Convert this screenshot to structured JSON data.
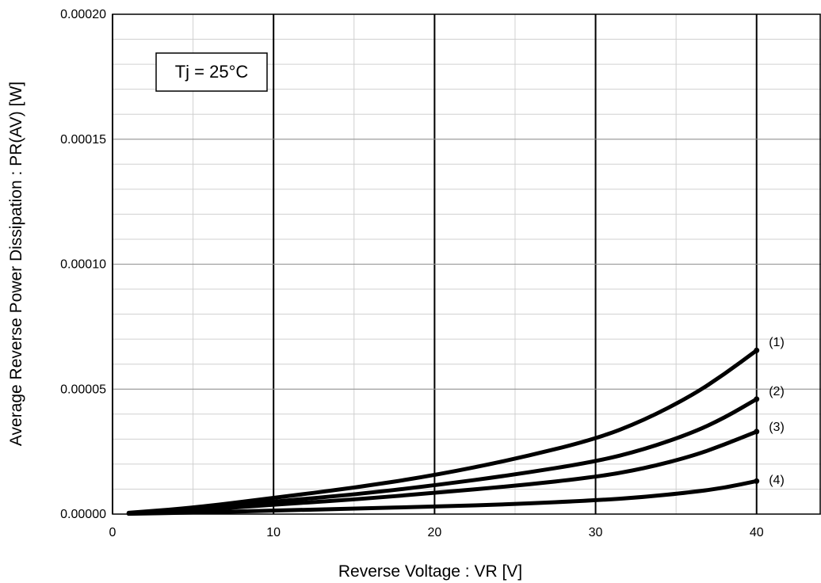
{
  "chart_data": {
    "type": "line",
    "title": "",
    "xlabel": "Reverse Voltage : VR [V]",
    "ylabel": "Average Reverse Power Dissipation : PR(AV) [W]",
    "xlim": [
      0,
      44
    ],
    "ylim": [
      0,
      0.0002
    ],
    "x_ticks": [
      "0",
      "10",
      "20",
      "30",
      "40"
    ],
    "y_ticks": [
      "0.00000",
      "0.00005",
      "0.00010",
      "0.00015",
      "0.00020"
    ],
    "grid": true,
    "annotation": "Tj = 25°C",
    "series": [
      {
        "label": "(1)",
        "x": [
          1,
          5,
          10,
          15,
          20,
          25,
          30,
          33,
          36,
          38,
          40
        ],
        "y": [
          5e-07,
          2.5e-06,
          6.5e-06,
          1.05e-05,
          1.55e-05,
          2.2e-05,
          3e-05,
          3.75e-05,
          4.75e-05,
          5.6e-05,
          6.55e-05
        ]
      },
      {
        "label": "(2)",
        "x": [
          1,
          5,
          10,
          15,
          20,
          25,
          30,
          33,
          36,
          38,
          40
        ],
        "y": [
          4e-07,
          1.8e-06,
          5e-06,
          7.8e-06,
          1.15e-05,
          1.58e-05,
          2.1e-05,
          2.58e-05,
          3.25e-05,
          3.85e-05,
          4.6e-05
        ]
      },
      {
        "label": "(3)",
        "x": [
          1,
          5,
          10,
          15,
          20,
          25,
          30,
          33,
          36,
          38,
          40
        ],
        "y": [
          3e-07,
          1.4e-06,
          3.8e-06,
          5.8e-06,
          8.5e-06,
          1.13e-05,
          1.48e-05,
          1.82e-05,
          2.32e-05,
          2.78e-05,
          3.3e-05
        ]
      },
      {
        "label": "(4)",
        "x": [
          1,
          5,
          10,
          15,
          20,
          25,
          30,
          33,
          36,
          38,
          40
        ],
        "y": [
          1e-07,
          6e-07,
          1.4e-06,
          2.2e-06,
          3e-06,
          4e-06,
          5.5e-06,
          6.8e-06,
          8.8e-06,
          1.05e-05,
          1.32e-05
        ]
      }
    ]
  }
}
